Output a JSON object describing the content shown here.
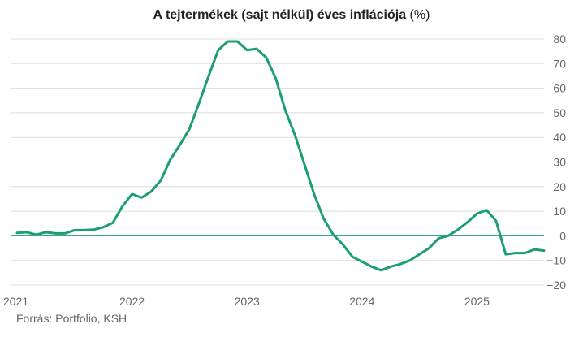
{
  "title": {
    "main": "A tejtermékek (sajt nélkül) éves inflációja",
    "unit": "(%)"
  },
  "source": "Forrás: Portfolio, KSH",
  "colors": {
    "line": "#1a9e72",
    "zero_line": "#1a9e72",
    "grid": "#dddddd",
    "text": "#666666"
  },
  "chart_data": {
    "type": "line",
    "title": "A tejtermékek (sajt nélkül) éves inflációja (%)",
    "xlabel": "",
    "ylabel": "",
    "x_ticks": [
      "2021",
      "2022",
      "2023",
      "2024",
      "2025"
    ],
    "y_ticks": [
      80,
      70,
      60,
      50,
      40,
      30,
      20,
      10,
      0,
      -10,
      -20
    ],
    "y_tick_labels": [
      "80",
      "70",
      "60",
      "50",
      "40",
      "30",
      "20",
      "10",
      "0",
      "−10",
      "−20"
    ],
    "ylim": [
      -20,
      80
    ],
    "xlim": [
      "2021-01",
      "2025-09"
    ],
    "grid": true,
    "y_axis_side": "right",
    "legend": "none",
    "series": [
      {
        "x": [
          "2021-01",
          "2021-02",
          "2021-03",
          "2021-04",
          "2021-05",
          "2021-06",
          "2021-07",
          "2021-08",
          "2021-09",
          "2021-10",
          "2021-11",
          "2021-12",
          "2022-01",
          "2022-02",
          "2022-03",
          "2022-04",
          "2022-05",
          "2022-06",
          "2022-07",
          "2022-08",
          "2022-09",
          "2022-10",
          "2022-11",
          "2022-12",
          "2023-01",
          "2023-02",
          "2023-03",
          "2023-04",
          "2023-05",
          "2023-06",
          "2023-07",
          "2023-08",
          "2023-09",
          "2023-10",
          "2023-11",
          "2023-12",
          "2024-01",
          "2024-02",
          "2024-03",
          "2024-04",
          "2024-05",
          "2024-06",
          "2024-07",
          "2024-08",
          "2024-09",
          "2024-10",
          "2024-11",
          "2024-12",
          "2025-01",
          "2025-02",
          "2025-03",
          "2025-04",
          "2025-05",
          "2025-06",
          "2025-07",
          "2025-08"
        ],
        "values": [
          1.2,
          1.5,
          0.5,
          1.5,
          1.0,
          1.0,
          2.3,
          2.3,
          2.5,
          3.5,
          5.3,
          12,
          17,
          15.5,
          18,
          22.5,
          31,
          37,
          43.5,
          54,
          65,
          75.5,
          79,
          79,
          75.5,
          76,
          72.5,
          64,
          51,
          41,
          29,
          17,
          7,
          0.5,
          -3.5,
          -8.5,
          -10.5,
          -12.5,
          -14,
          -12.5,
          -11.5,
          -10,
          -7.5,
          -5,
          -1,
          0,
          2.5,
          5.5,
          9,
          10.5,
          6,
          -7.5,
          -7,
          -7,
          -5.5,
          -6
        ]
      }
    ]
  }
}
